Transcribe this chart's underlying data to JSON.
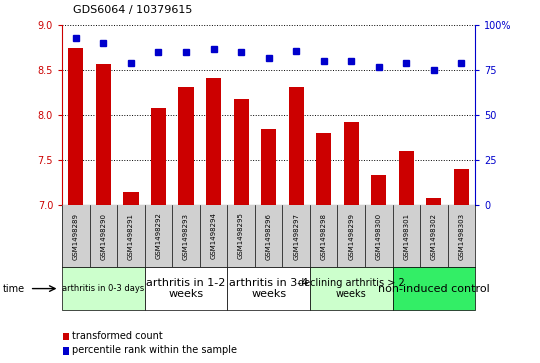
{
  "title": "GDS6064 / 10379615",
  "samples": [
    "GSM1498289",
    "GSM1498290",
    "GSM1498291",
    "GSM1498292",
    "GSM1498293",
    "GSM1498294",
    "GSM1498295",
    "GSM1498296",
    "GSM1498297",
    "GSM1498298",
    "GSM1498299",
    "GSM1498300",
    "GSM1498301",
    "GSM1498302",
    "GSM1498303"
  ],
  "bar_values": [
    8.75,
    8.57,
    7.15,
    8.08,
    8.31,
    8.42,
    8.18,
    7.85,
    8.32,
    7.8,
    7.92,
    7.33,
    7.6,
    7.08,
    7.4
  ],
  "dot_values": [
    93,
    90,
    79,
    85,
    85,
    87,
    85,
    82,
    86,
    80,
    80,
    77,
    79,
    75,
    79
  ],
  "ylim_left": [
    7.0,
    9.0
  ],
  "ylim_right": [
    0,
    100
  ],
  "bar_color": "#cc0000",
  "dot_color": "#0000cc",
  "left_ticks": [
    7.0,
    7.5,
    8.0,
    8.5,
    9.0
  ],
  "right_ticks": [
    0,
    25,
    50,
    75,
    100
  ],
  "right_tick_labels": [
    "0",
    "25",
    "50",
    "75",
    "100%"
  ],
  "groups": [
    {
      "label": "arthritis in 0-3 days",
      "start": 0,
      "end": 3,
      "color": "#ccffcc",
      "fontsize": 6
    },
    {
      "label": "arthritis in 1-2\nweeks",
      "start": 3,
      "end": 6,
      "color": "#ffffff",
      "fontsize": 8
    },
    {
      "label": "arthritis in 3-4\nweeks",
      "start": 6,
      "end": 9,
      "color": "#ffffff",
      "fontsize": 8
    },
    {
      "label": "declining arthritis > 2\nweeks",
      "start": 9,
      "end": 12,
      "color": "#ccffcc",
      "fontsize": 7
    },
    {
      "label": "non-induced control",
      "start": 12,
      "end": 15,
      "color": "#33ee66",
      "fontsize": 8
    }
  ],
  "time_label": "time",
  "legend_bar_label": "transformed count",
  "legend_dot_label": "percentile rank within the sample",
  "left_axis_color": "#cc0000",
  "right_axis_color": "#0000cc",
  "sample_bg_color": "#d0d0d0",
  "plot_bg_color": "#ffffff"
}
